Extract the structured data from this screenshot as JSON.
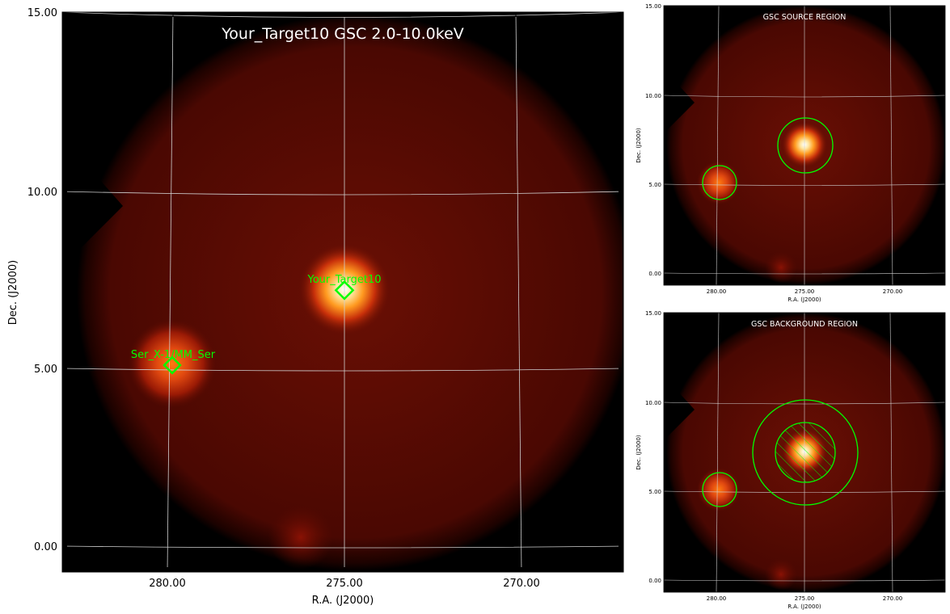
{
  "main": {
    "title": "Your_Target10 GSC 2.0-10.0keV",
    "xlabel": "R.A. (J2000)",
    "ylabel": "Dec. (J2000)",
    "xticks": [
      "280.00",
      "275.00",
      "270.00"
    ],
    "yticks": [
      "15.00",
      "10.00",
      "5.00",
      "0.00"
    ],
    "sources": [
      {
        "name": "Your_Target10"
      },
      {
        "name": "Ser_X-1/MM_Ser"
      }
    ]
  },
  "source_panel": {
    "title": "GSC SOURCE REGION",
    "xlabel": "R.A. (J2000)",
    "ylabel": "Dec. (J2000)",
    "xticks": [
      "280.00",
      "275.00",
      "270.00"
    ],
    "yticks": [
      "15.00",
      "10.00",
      "5.00",
      "0.00"
    ]
  },
  "background_panel": {
    "title": "GSC BACKGROUND REGION",
    "xlabel": "R.A. (J2000)",
    "ylabel": "Dec. (J2000)",
    "xticks": [
      "280.00",
      "275.00",
      "270.00"
    ],
    "yticks": [
      "15.00",
      "10.00",
      "5.00",
      "0.00"
    ]
  },
  "colors": {
    "source_marker": "#00ff00",
    "grid": "#d0d0d0",
    "title_text": "#ffffff",
    "disk": "#5a0a02"
  }
}
